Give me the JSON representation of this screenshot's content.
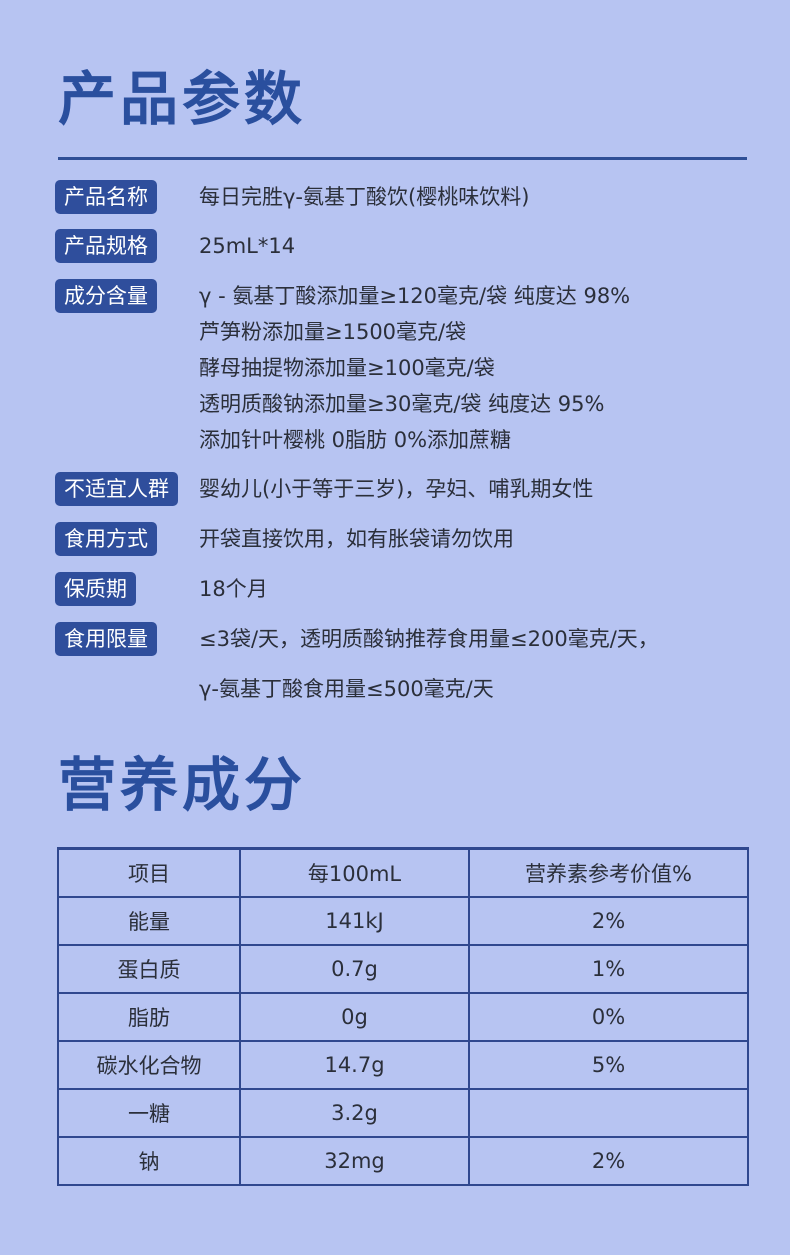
{
  "sections": {
    "params_title": "产品参数",
    "nutrition_title": "营养成分"
  },
  "params": [
    {
      "label": "产品名称",
      "values": [
        "每日完胜γ-氨基丁酸饮(樱桃味饮料)"
      ]
    },
    {
      "label": "产品规格",
      "values": [
        "25mL*14"
      ]
    },
    {
      "label": "成分含量",
      "values": [
        "γ - 氨基丁酸添加量≥120毫克/袋 纯度达 98%",
        "芦笋粉添加量≥1500毫克/袋",
        "酵母抽提物添加量≥100毫克/袋",
        "透明质酸钠添加量≥30毫克/袋 纯度达 95%",
        "添加针叶樱桃 0脂肪 0%添加蔗糖"
      ]
    },
    {
      "label": "不适宜人群",
      "values": [
        "婴幼儿(小于等于三岁)，孕妇、哺乳期女性"
      ]
    },
    {
      "label": "食用方式",
      "values": [
        "开袋直接饮用，如有胀袋请勿饮用"
      ]
    },
    {
      "label": "保质期",
      "values": [
        "18个月"
      ]
    },
    {
      "label": "食用限量",
      "values": [
        "≤3袋/天，透明质酸钠推荐食用量≤200毫克/天，",
        "γ-氨基丁酸食用量≤500毫克/天"
      ]
    }
  ],
  "nutrition": {
    "headers": [
      "项目",
      "每100mL",
      "营养素参考价值%"
    ],
    "rows": [
      [
        "能量",
        "141kJ",
        "2%"
      ],
      [
        "蛋白质",
        "0.7g",
        "1%"
      ],
      [
        "脂肪",
        "0g",
        "0%"
      ],
      [
        "碳水化合物",
        "14.7g",
        "5%"
      ],
      [
        "一糖",
        "3.2g",
        ""
      ],
      [
        "钠",
        "32mg",
        "2%"
      ]
    ]
  },
  "colors": {
    "background": "#b7c4f2",
    "accent": "#2a4f9e",
    "badge": "#2f4e9c"
  }
}
